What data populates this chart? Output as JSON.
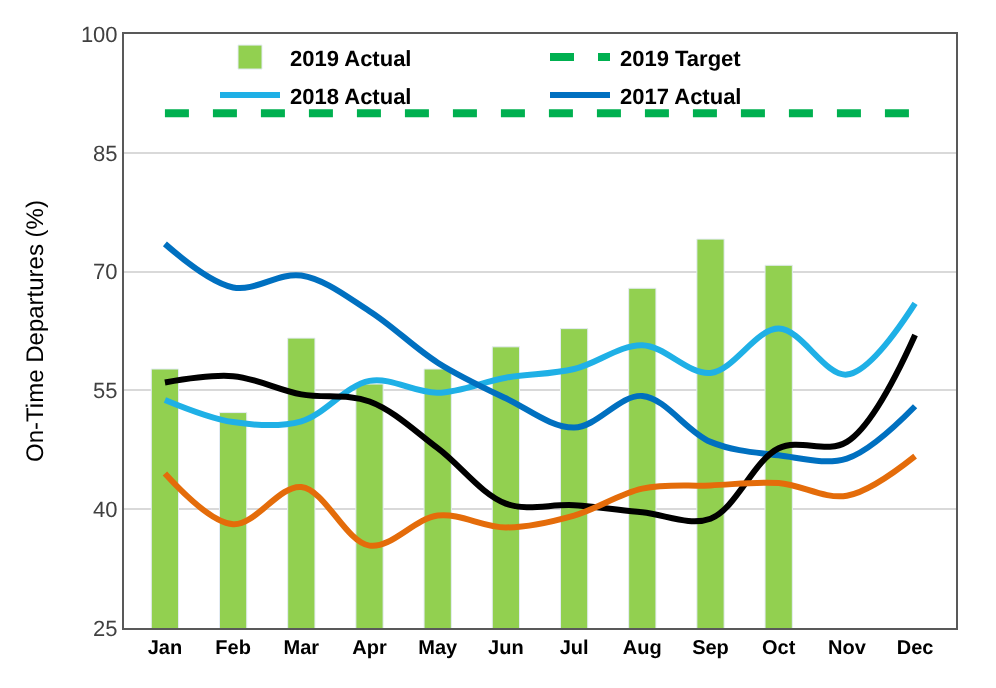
{
  "chart_data": {
    "type": "bar",
    "ylabel": "On-Time Departures (%)",
    "categories": [
      "Jan",
      "Feb",
      "Mar",
      "Apr",
      "May",
      "Jun",
      "Jul",
      "Aug",
      "Sep",
      "Oct",
      "Nov",
      "Dec"
    ],
    "series": [
      {
        "name": "2019 Actual",
        "color": "#92d050",
        "values": [
          57.7,
          52.2,
          61.6,
          55.8,
          57.7,
          60.5,
          62.8,
          67.9,
          74.1,
          70.8,
          null,
          null
        ]
      },
      {
        "name": "2019 Target",
        "type": "line",
        "line_style": "dashed",
        "color": "#00b050",
        "values": [
          90,
          90,
          90,
          90,
          90,
          90,
          90,
          90,
          90,
          90,
          90,
          90
        ]
      },
      {
        "name": "2018 Actual",
        "type": "line",
        "color": "#1fb0e6",
        "values": [
          53.8,
          51,
          51.1,
          56.2,
          54.7,
          56.6,
          57.7,
          60.7,
          57.2,
          62.8,
          57,
          66
        ]
      },
      {
        "name": "2017 Actual",
        "type": "line",
        "color": "#0070c0",
        "values": [
          73.5,
          68,
          69.5,
          65,
          58.5,
          54,
          50.3,
          54.3,
          48.5,
          46.8,
          46.4,
          53
        ]
      },
      {
        "type": "line",
        "color": "#000000",
        "values": [
          56,
          56.8,
          54.5,
          53.6,
          47.7,
          40.7,
          40.5,
          39.6,
          38.8,
          47.7,
          48.5,
          62
        ]
      },
      {
        "type": "line",
        "color": "#e46c0a",
        "values": [
          44.5,
          38.1,
          42.8,
          35.4,
          39.2,
          37.7,
          39.2,
          42.6,
          43,
          43.3,
          41.7,
          46.7
        ]
      }
    ],
    "ylim": [
      25,
      100
    ],
    "yticks": [
      25,
      40,
      55,
      70,
      85,
      100
    ],
    "grid": "y",
    "legend": "top"
  }
}
